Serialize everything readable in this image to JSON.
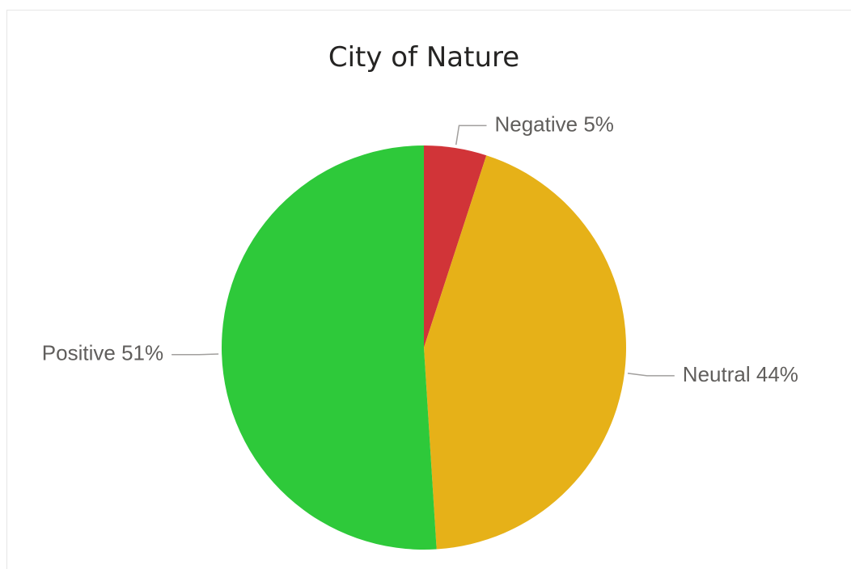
{
  "chart_data": {
    "type": "pie",
    "title": "City of Nature",
    "categories": [
      "Negative",
      "Neutral",
      "Positive"
    ],
    "values": [
      5,
      44,
      51
    ],
    "value_labels": [
      "5%",
      "44%",
      "51%"
    ],
    "colors": [
      "#d13438",
      "#e6b118",
      "#2ec93a"
    ]
  }
}
